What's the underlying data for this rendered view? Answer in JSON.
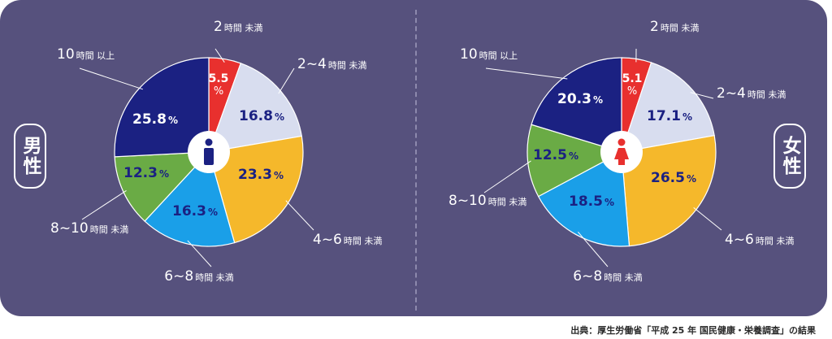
{
  "chart_data": [
    {
      "type": "pie",
      "group_label": "男性",
      "categories": [
        "2時間 未満",
        "2~4時間 未満",
        "4~6時間 未満",
        "6~8時間 未満",
        "8~10時間 未満",
        "10時間 以上"
      ],
      "values": [
        5.5,
        16.8,
        23.3,
        16.3,
        12.3,
        25.8
      ],
      "unit": "%"
    },
    {
      "type": "pie",
      "group_label": "女性",
      "categories": [
        "2時間 未満",
        "2~4時間 未満",
        "4~6時間 未満",
        "6~8時間 未満",
        "8~10時間 未満",
        "10時間 以上"
      ],
      "values": [
        5.1,
        17.1,
        26.5,
        18.5,
        12.5,
        20.3
      ],
      "unit": "%"
    }
  ],
  "colors": [
    "#e8302e",
    "#d8ddef",
    "#f5b82b",
    "#1a9fe8",
    "#6aab45",
    "#1b2182"
  ],
  "value_colors": [
    "#ffffff",
    "#1b2182",
    "#1b2182",
    "#1b2182",
    "#1b2182",
    "#ffffff"
  ],
  "center_icons": [
    "male-icon",
    "female-icon"
  ],
  "source": "出典：厚生労働省「平成 25 年 国民健康・栄養調査」の結果"
}
